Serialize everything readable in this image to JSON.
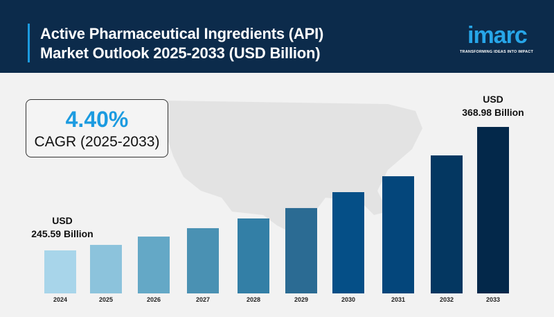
{
  "header": {
    "title_line1": "Active Pharmaceutical Ingredients (API)",
    "title_line2": "Market Outlook 2025-2033 (USD Billion)",
    "logo": "imarc",
    "logo_tagline": "TRANSFORMING IDEAS INTO IMPACT"
  },
  "cagr": {
    "value": "4.40%",
    "label": "CAGR (2025-2033)"
  },
  "colors": {
    "header_bg": "#0c2b4b",
    "accent": "#1c9be0",
    "background": "#f2f2f2"
  },
  "chart_data": {
    "type": "bar",
    "title": "Active Pharmaceutical Ingredients (API) Market Outlook 2025-2033 (USD Billion)",
    "categories": [
      "2024",
      "2025",
      "2026",
      "2027",
      "2028",
      "2029",
      "2030",
      "2031",
      "2032",
      "2033"
    ],
    "values": [
      245.59,
      251.1,
      259.4,
      267.8,
      277.5,
      287.9,
      303.8,
      319.7,
      340.5,
      368.98
    ],
    "colors": [
      "#a8d5ea",
      "#8cc3dc",
      "#64a8c6",
      "#4a91b3",
      "#337fa6",
      "#2b6b93",
      "#054f87",
      "#04467b",
      "#043761",
      "#03284a"
    ],
    "ylim": [
      202.6,
      380
    ],
    "grid": false,
    "annotations": [
      {
        "category": "2024",
        "line1": "USD",
        "line2": "245.59 Billion"
      },
      {
        "category": "2033",
        "line1": "USD",
        "line2": "368.98 Billion"
      }
    ]
  }
}
